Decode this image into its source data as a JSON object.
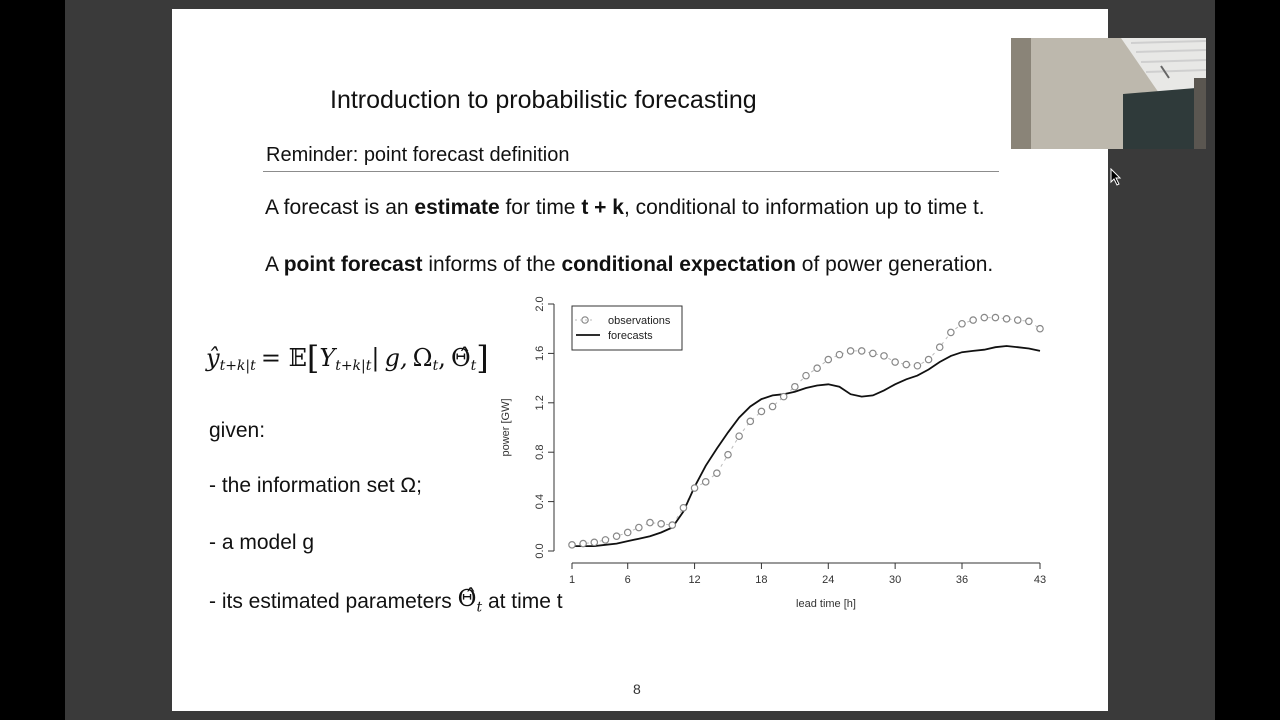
{
  "slide": {
    "title": "Introduction to probabilistic forecasting",
    "subtitle": "Reminder: point forecast definition",
    "line1": {
      "p1": "A forecast is an ",
      "b1": "estimate",
      "p2": " for time ",
      "b2": "t + k",
      "p3": ", conditional to information up to time t."
    },
    "line2": {
      "p1": "A ",
      "b1": "point forecast",
      "p2": " informs of the ",
      "b2": "conditional expectation",
      "p3": " of power generation."
    },
    "formula": {
      "yhat": "ŷ",
      "y_sub": "t+k|t",
      "eq": "= 𝔼",
      "Y": "Y",
      "Y_sub": "t+k|t",
      "bar": "|",
      "g": "g,",
      "omega": "Ω",
      "omega_sub": "t",
      "theta": "Θ̂",
      "theta_sub": "t"
    },
    "given": "given:",
    "bullets": {
      "b1": "- the information set Ω;",
      "b2": "- a model g",
      "b3_pre": "- its estimated parameters",
      "b3_theta": "Θ̂",
      "b3_sub": "t",
      "b3_post": "at time t"
    },
    "page_number": "8"
  },
  "chart_data": {
    "type": "line",
    "xlabel": "lead time [h]",
    "ylabel": "power [GW]",
    "xlim": [
      1,
      43
    ],
    "ylim": [
      0.0,
      2.0
    ],
    "xticks": [
      1,
      6,
      12,
      18,
      24,
      30,
      36,
      43
    ],
    "yticks": [
      "0.0",
      "0.4",
      "0.8",
      "1.2",
      "1.6",
      "2.0"
    ],
    "legend_position": "top-left",
    "x": [
      1,
      2,
      3,
      4,
      5,
      6,
      7,
      8,
      9,
      10,
      11,
      12,
      13,
      14,
      15,
      16,
      17,
      18,
      19,
      20,
      21,
      22,
      23,
      24,
      25,
      26,
      27,
      28,
      29,
      30,
      31,
      32,
      33,
      34,
      35,
      36,
      37,
      38,
      39,
      40,
      41,
      42,
      43
    ],
    "series": [
      {
        "name": "observations",
        "style": "circles-dashed",
        "color": "#888888",
        "values": [
          0.05,
          0.06,
          0.07,
          0.09,
          0.12,
          0.15,
          0.19,
          0.23,
          0.22,
          0.21,
          0.35,
          0.51,
          0.56,
          0.63,
          0.78,
          0.93,
          1.05,
          1.13,
          1.17,
          1.25,
          1.33,
          1.42,
          1.48,
          1.55,
          1.59,
          1.62,
          1.62,
          1.6,
          1.58,
          1.53,
          1.51,
          1.5,
          1.55,
          1.65,
          1.77,
          1.84,
          1.87,
          1.89,
          1.89,
          1.88,
          1.87,
          1.86,
          1.8
        ]
      },
      {
        "name": "forecasts",
        "style": "solid",
        "color": "#111111",
        "values": [
          0.04,
          0.04,
          0.04,
          0.05,
          0.06,
          0.08,
          0.1,
          0.12,
          0.15,
          0.19,
          0.32,
          0.52,
          0.69,
          0.83,
          0.96,
          1.08,
          1.17,
          1.23,
          1.26,
          1.27,
          1.29,
          1.32,
          1.34,
          1.35,
          1.33,
          1.27,
          1.25,
          1.26,
          1.3,
          1.35,
          1.39,
          1.42,
          1.47,
          1.53,
          1.58,
          1.61,
          1.62,
          1.63,
          1.65,
          1.66,
          1.65,
          1.64,
          1.62
        ]
      }
    ]
  },
  "colors": {
    "background": "#000000",
    "slide": "#ffffff",
    "text": "#111111"
  }
}
